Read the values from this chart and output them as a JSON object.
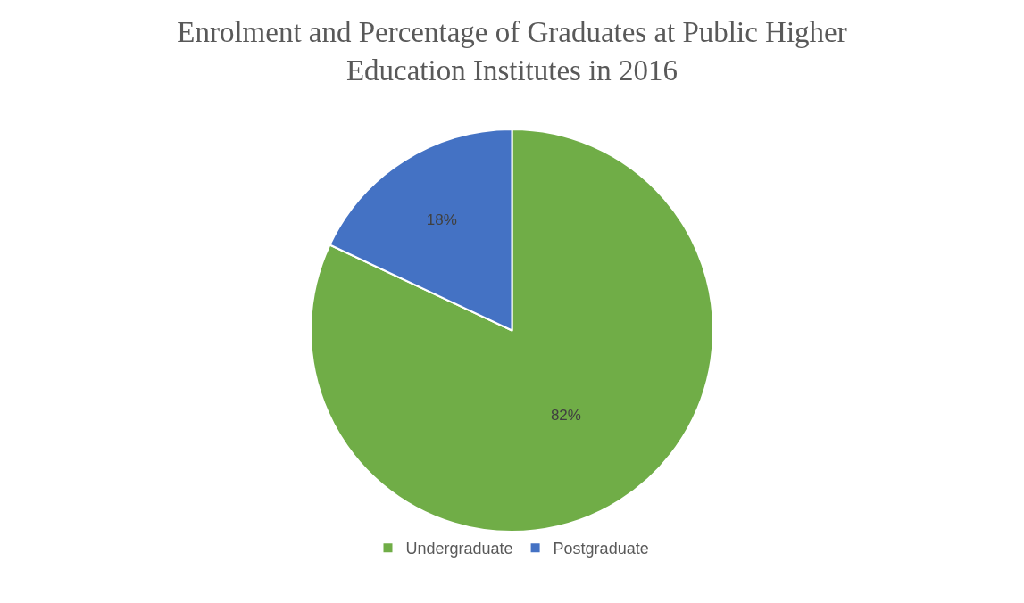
{
  "chart_data": {
    "type": "pie",
    "title": "Enrolment and Percentage of Graduates at Public Higher Education Institutes in 2016",
    "categories": [
      "Undergraduate",
      "Postgraduate"
    ],
    "values": [
      82,
      18
    ],
    "colors": [
      "#70ad47",
      "#4472c4"
    ],
    "value_labels": [
      "82%",
      "18%"
    ],
    "legend": "bottom"
  }
}
